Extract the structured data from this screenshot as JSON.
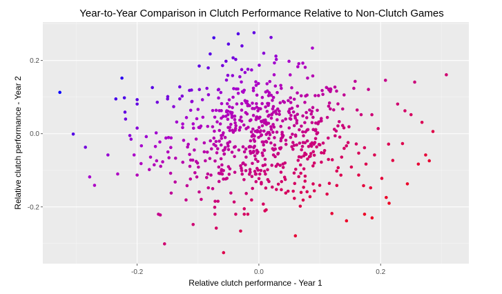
{
  "chart_data": {
    "type": "scatter",
    "title": "Year-to-Year Comparison in Clutch Performance Relative to Non-Clutch Games",
    "xlabel": "Relative clutch performance - Year 1",
    "ylabel": "Relative clutch performance - Year 2",
    "xlim": [
      -0.355,
      0.345
    ],
    "ylim": [
      -0.355,
      0.305
    ],
    "x_ticks": [
      -0.2,
      0.0,
      0.2
    ],
    "x_tick_labels": [
      "-0.2",
      "0.0",
      "0.2"
    ],
    "y_ticks": [
      -0.2,
      0.0,
      0.2
    ],
    "y_tick_labels": [
      "-0.2",
      "0.0",
      "0.2"
    ],
    "grid": true,
    "legend": "none",
    "colors": {
      "panel": "#EBEBEB",
      "grid_major": "#FFFFFF",
      "grid_minor": "#F5F5F5",
      "low_color": "#0000FF",
      "mid_color": "#AA00CC",
      "high_color": "#EE0022"
    },
    "color_encoding": "y - x",
    "points": [
      [
        -0.327,
        0.113
      ],
      [
        -0.305,
        -0.001
      ],
      [
        -0.285,
        -0.037
      ],
      [
        -0.278,
        -0.118
      ],
      [
        -0.27,
        -0.141
      ],
      [
        -0.248,
        -0.058
      ],
      [
        -0.235,
        0.095
      ],
      [
        -0.232,
        -0.11
      ],
      [
        -0.225,
        0.152
      ],
      [
        -0.221,
        0.098
      ],
      [
        -0.22,
        0.059
      ],
      [
        -0.219,
        0.04
      ],
      [
        -0.212,
        -0.005
      ],
      [
        -0.21,
        -0.015
      ],
      [
        -0.205,
        -0.058
      ],
      [
        -0.2,
        -0.113
      ],
      [
        -0.193,
        -0.033
      ],
      [
        -0.185,
        -0.008
      ],
      [
        -0.18,
        -0.098
      ],
      [
        -0.178,
        -0.064
      ],
      [
        -0.175,
        0.126
      ],
      [
        -0.172,
        -0.085
      ],
      [
        -0.17,
        -0.035
      ],
      [
        -0.168,
        -0.074
      ],
      [
        -0.162,
        -0.222
      ],
      [
        -0.155,
        -0.301
      ],
      [
        -0.15,
        0.095
      ],
      [
        -0.145,
        -0.108
      ],
      [
        -0.14,
        0.074
      ],
      [
        -0.135,
        0.032
      ],
      [
        -0.13,
        0.128
      ],
      [
        -0.125,
        -0.078
      ],
      [
        -0.118,
        -0.142
      ],
      [
        -0.112,
        0.064
      ],
      [
        -0.108,
        -0.248
      ],
      [
        -0.102,
        0.041
      ],
      [
        -0.098,
        0.185
      ],
      [
        -0.092,
        0.045
      ],
      [
        -0.088,
        -0.074
      ],
      [
        -0.084,
        -0.11
      ],
      [
        -0.08,
        0.218
      ],
      [
        -0.074,
        0.262
      ],
      [
        -0.07,
        -0.258
      ],
      [
        -0.066,
        0.121
      ],
      [
        -0.062,
        -0.031
      ],
      [
        -0.058,
        -0.325
      ],
      [
        -0.054,
        0.198
      ],
      [
        -0.05,
        0.245
      ],
      [
        -0.046,
        -0.162
      ],
      [
        -0.042,
        0.004
      ],
      [
        -0.038,
        0.203
      ],
      [
        -0.034,
        0.273
      ],
      [
        -0.03,
        -0.266
      ],
      [
        -0.027,
        0.115
      ],
      [
        -0.024,
        -0.205
      ],
      [
        -0.021,
        -0.064
      ],
      [
        -0.018,
        0.176
      ],
      [
        -0.015,
        -0.035
      ],
      [
        -0.012,
        -0.181
      ],
      [
        -0.008,
        0.276
      ],
      [
        -0.004,
        0.082
      ],
      [
        0.0,
        0.042
      ],
      [
        0.004,
        -0.137
      ],
      [
        0.008,
        0.22
      ],
      [
        0.012,
        -0.208
      ],
      [
        0.016,
        0.104
      ],
      [
        0.02,
        0.263
      ],
      [
        0.024,
        -0.058
      ],
      [
        0.028,
        0.212
      ],
      [
        0.032,
        -0.138
      ],
      [
        0.036,
        0.132
      ],
      [
        0.04,
        -0.092
      ],
      [
        0.044,
        0.04
      ],
      [
        0.048,
        -0.157
      ],
      [
        0.052,
        0.098
      ],
      [
        0.056,
        -0.024
      ],
      [
        0.06,
        -0.279
      ],
      [
        0.064,
        0.183
      ],
      [
        0.068,
        -0.198
      ],
      [
        0.072,
        0.005
      ],
      [
        0.076,
        -0.116
      ],
      [
        0.08,
        0.152
      ],
      [
        0.084,
        -0.172
      ],
      [
        0.088,
        0.234
      ],
      [
        0.092,
        -0.024
      ],
      [
        0.096,
        0.064
      ],
      [
        0.1,
        -0.141
      ],
      [
        0.104,
        0.118
      ],
      [
        0.108,
        -0.046
      ],
      [
        0.112,
        -0.165
      ],
      [
        0.116,
        0.084
      ],
      [
        0.12,
        -0.218
      ],
      [
        0.124,
        0.012
      ],
      [
        0.128,
        -0.102
      ],
      [
        0.132,
        0.033
      ],
      [
        0.136,
        -0.064
      ],
      [
        0.14,
        0.106
      ],
      [
        0.144,
        -0.238
      ],
      [
        0.148,
        0.019
      ],
      [
        0.152,
        -0.091
      ],
      [
        0.156,
        0.124
      ],
      [
        0.16,
        -0.028
      ],
      [
        0.164,
        -0.113
      ],
      [
        0.168,
        0.052
      ],
      [
        0.172,
        -0.142
      ],
      [
        0.176,
        -0.083
      ],
      [
        0.18,
        0.121
      ],
      [
        0.186,
        -0.23
      ],
      [
        0.19,
        -0.058
      ],
      [
        0.196,
        0.014
      ],
      [
        0.202,
        -0.122
      ],
      [
        0.208,
        0.146
      ],
      [
        0.214,
        -0.19
      ],
      [
        0.22,
        -0.073
      ],
      [
        0.228,
        0.081
      ],
      [
        0.236,
        -0.027
      ],
      [
        0.244,
        -0.137
      ],
      [
        0.25,
        0.052
      ],
      [
        0.256,
        0.141
      ],
      [
        0.262,
        -0.083
      ],
      [
        0.268,
        0.031
      ],
      [
        0.274,
        -0.058
      ],
      [
        0.28,
        -0.074
      ],
      [
        0.286,
        0.006
      ],
      [
        0.308,
        0.161
      ]
    ]
  }
}
